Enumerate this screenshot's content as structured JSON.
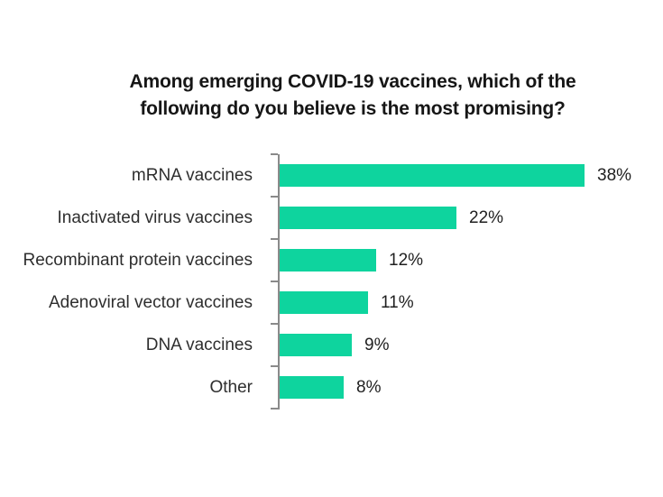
{
  "page": {
    "background_color": "#ffffff"
  },
  "title": {
    "line1": "Among emerging COVID-19 vaccines, which of the",
    "line2": "following do you believe is the most promising?"
  },
  "chart_data": {
    "type": "bar",
    "orientation": "horizontal",
    "title": "Among emerging COVID-19 vaccines, which of the following do you believe is the most promising?",
    "categories": [
      "mRNA vaccines",
      "Inactivated virus vaccines",
      "Recombinant protein vaccines",
      "Adenoviral vector vaccines",
      "DNA vaccines",
      "Other"
    ],
    "values": [
      38,
      22,
      12,
      11,
      9,
      8
    ],
    "value_labels": [
      "38%",
      "22%",
      "12%",
      "11%",
      "9%",
      "8%"
    ],
    "unit": "percent",
    "xlim": [
      0,
      40
    ],
    "grid": false,
    "legend": false,
    "bar_color": "#0ed49e",
    "axis_color": "#8a8a8a",
    "label_color": "#2e2e2e",
    "title_color": "#161616"
  }
}
